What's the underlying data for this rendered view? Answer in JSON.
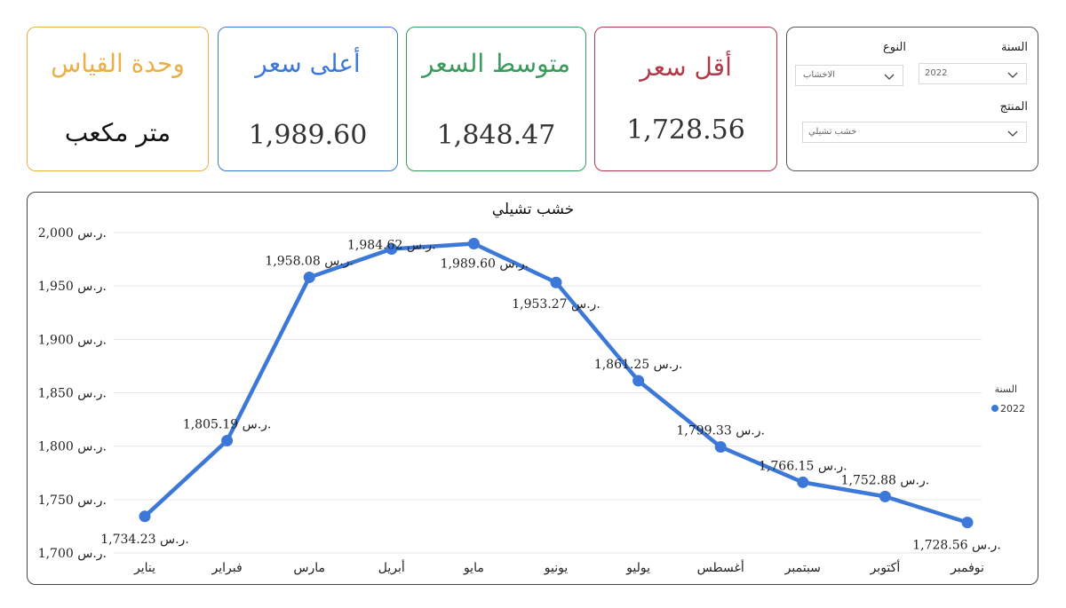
{
  "cards": {
    "unit": {
      "title": "وحدة القياس",
      "value": "متر مكعب",
      "color": "#e9b04a"
    },
    "max": {
      "title": "أعلى سعر",
      "value": "1,989.60",
      "color": "#3c78d8"
    },
    "avg": {
      "title": "متوسط السعر",
      "value": "1,848.47",
      "color": "#3a9a5c"
    },
    "min": {
      "title": "أقل سعر",
      "value": "1,728.56",
      "color": "#b03a48"
    }
  },
  "filters": {
    "year_label": "السنة",
    "year_value": "2022",
    "type_label": "النوع",
    "type_value": "الاخشاب",
    "product_label": "المنتج",
    "product_value": "خشب تشيلي"
  },
  "chart_data": {
    "type": "line",
    "title": "خشب تشيلي",
    "categories": [
      "يناير",
      "فبراير",
      "مارس",
      "أبريل",
      "مايو",
      "يونيو",
      "يوليو",
      "أغسطس",
      "سبتمبر",
      "أكتوبر",
      "نوفمبر"
    ],
    "series": [
      {
        "name": "2022",
        "color": "#3c78d8",
        "values": [
          1734.23,
          1805.19,
          1958.08,
          1984.62,
          1989.6,
          1953.27,
          1861.25,
          1799.33,
          1766.15,
          1752.88,
          1728.56
        ],
        "labels": [
          "1,734.23 ر.س.",
          "1,805.19 ر.س.",
          "1,958.08 ر.س.",
          "1,984.62 ر.س.",
          "1,989.60 ر.س.",
          "1,953.27 ر.س.",
          "1,861.25 ر.س.",
          "1,799.33 ر.س.",
          "1,766.15 ر.س.",
          "1,752.88 ر.س.",
          "1,728.56 ر.س."
        ]
      }
    ],
    "ylim": [
      1700,
      2000
    ],
    "yticks": [
      1700,
      1750,
      1800,
      1850,
      1900,
      1950,
      2000
    ],
    "ytick_labels": [
      "1,700 ر.س.",
      "1,750 ر.س.",
      "1,800 ر.س.",
      "1,850 ر.س.",
      "1,900 ر.س.",
      "1,950 ر.س.",
      "2,000 ر.س."
    ],
    "legend_title": "السنة",
    "legend_position": "right",
    "grid": true
  }
}
